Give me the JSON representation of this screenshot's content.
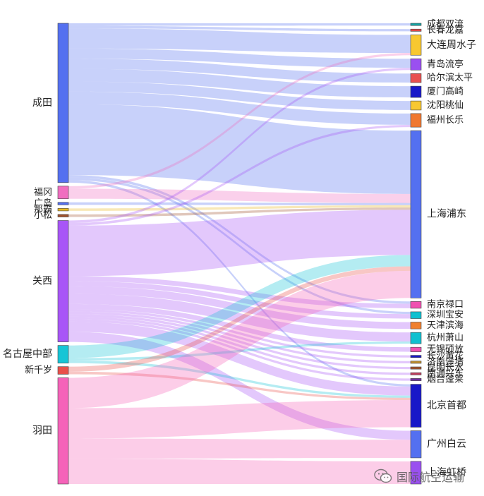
{
  "chart_data": {
    "type": "sankey",
    "colors": {
      "成田": "#5470f0",
      "福冈": "#f06ec0",
      "广岛": "#5470f0",
      "那霸": "#e8b820",
      "小松": "#a0522d",
      "关西": "#a855f7",
      "名古屋中部": "#16c5d6",
      "新千岁": "#e8504a",
      "羽田": "#f563b9",
      "成都双流": "#14a4a4",
      "长春龙嘉": "#e04848",
      "大连周水子": "#f8c830",
      "青岛流亭": "#9a50f0",
      "哈尔滨太平": "#e85050",
      "厦门高崎": "#1818c8",
      "沈阳桃仙": "#f8c830",
      "福州长乐": "#f07830",
      "上海浦东": "#5470f0",
      "南京禄口": "#f050b0",
      "深圳宝安": "#10c0d0",
      "天津滨海": "#f08030",
      "杭州萧山": "#10c0d0",
      "无锡硕放": "#f050b0",
      "长沙黄花": "#1818c8",
      "济南遥墙": "#c09030",
      "昆明长水": "#a0522d",
      "南通兴东": "#c04060",
      "烟台蓬莱": "#7030a0",
      "北京首都": "#1818c8",
      "广州白云": "#5470f0",
      "上海虹桥": "#9a50f0"
    },
    "source_nodes": [
      "成田",
      "福冈",
      "广岛",
      "那霸",
      "小松",
      "关西",
      "名古屋中部",
      "新千岁",
      "羽田"
    ],
    "target_nodes": [
      "成都双流",
      "长春龙嘉",
      "大连周水子",
      "青岛流亭",
      "哈尔滨太平",
      "厦门高崎",
      "沈阳桃仙",
      "福州长乐",
      "上海浦东",
      "南京禄口",
      "深圳宝安",
      "天津滨海",
      "杭州萧山",
      "无锡硕放",
      "长沙黄花",
      "济南遥墙",
      "昆明长水",
      "南通兴东",
      "烟台蓬莱",
      "北京首都",
      "广州白云",
      "上海虹桥"
    ],
    "links": [
      {
        "source": "成田",
        "target": "成都双流",
        "value": 1
      },
      {
        "source": "成田",
        "target": "长春龙嘉",
        "value": 1
      },
      {
        "source": "成田",
        "target": "大连周水子",
        "value": 8
      },
      {
        "source": "成田",
        "target": "青岛流亭",
        "value": 4
      },
      {
        "source": "成田",
        "target": "哈尔滨太平",
        "value": 4
      },
      {
        "source": "成田",
        "target": "厦门高崎",
        "value": 5
      },
      {
        "source": "成田",
        "target": "沈阳桃仙",
        "value": 4
      },
      {
        "source": "成田",
        "target": "福州长乐",
        "value": 5
      },
      {
        "source": "成田",
        "target": "上海浦东",
        "value": 28
      },
      {
        "source": "成田",
        "target": "南京禄口",
        "value": 1
      },
      {
        "source": "成田",
        "target": "深圳宝安",
        "value": 1
      },
      {
        "source": "成田",
        "target": "北京首都",
        "value": 1
      },
      {
        "source": "福冈",
        "target": "大连周水子",
        "value": 1
      },
      {
        "source": "福冈",
        "target": "上海浦东",
        "value": 4
      },
      {
        "source": "广岛",
        "target": "上海浦东",
        "value": 1
      },
      {
        "source": "那霸",
        "target": "上海浦东",
        "value": 1
      },
      {
        "source": "小松",
        "target": "上海浦东",
        "value": 1
      },
      {
        "source": "关西",
        "target": "青岛流亭",
        "value": 1
      },
      {
        "source": "关西",
        "target": "福州长乐",
        "value": 1
      },
      {
        "source": "关西",
        "target": "上海浦东",
        "value": 20
      },
      {
        "source": "关西",
        "target": "南京禄口",
        "value": 2
      },
      {
        "source": "关西",
        "target": "深圳宝安",
        "value": 2
      },
      {
        "source": "关西",
        "target": "天津滨海",
        "value": 3
      },
      {
        "source": "关西",
        "target": "杭州萧山",
        "value": 4
      },
      {
        "source": "关西",
        "target": "无锡硕放",
        "value": 2
      },
      {
        "source": "关西",
        "target": "长沙黄花",
        "value": 1
      },
      {
        "source": "关西",
        "target": "济南遥墙",
        "value": 1
      },
      {
        "source": "关西",
        "target": "昆明长水",
        "value": 1
      },
      {
        "source": "关西",
        "target": "南通兴东",
        "value": 1
      },
      {
        "source": "关西",
        "target": "烟台蓬莱",
        "value": 1
      },
      {
        "source": "关西",
        "target": "北京首都",
        "value": 4
      },
      {
        "source": "关西",
        "target": "广州白云",
        "value": 4
      },
      {
        "source": "名古屋中部",
        "target": "上海浦东",
        "value": 5
      },
      {
        "source": "名古屋中部",
        "target": "杭州萧山",
        "value": 1
      },
      {
        "source": "名古屋中部",
        "target": "北京首都",
        "value": 1
      },
      {
        "source": "新千岁",
        "target": "上海浦东",
        "value": 2
      },
      {
        "source": "新千岁",
        "target": "北京首都",
        "value": 1
      },
      {
        "source": "羽田",
        "target": "上海浦东",
        "value": 12
      },
      {
        "source": "羽田",
        "target": "北京首都",
        "value": 12
      },
      {
        "source": "羽田",
        "target": "广州白云",
        "value": 8
      },
      {
        "source": "羽田",
        "target": "上海虹桥",
        "value": 10
      }
    ]
  },
  "watermark": {
    "text": "国际航空运输",
    "icon": "wechat-logo-icon"
  }
}
